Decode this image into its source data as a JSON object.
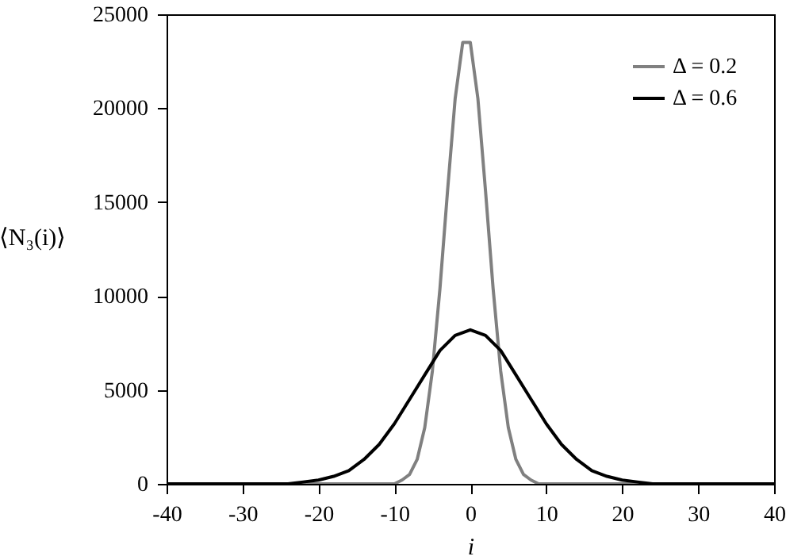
{
  "chart_data": {
    "type": "line",
    "xlabel": "i",
    "ylabel": "⟨N₃(i)⟩",
    "xlim": [
      -40,
      40
    ],
    "xticks": [
      -40,
      -30,
      -20,
      -10,
      0,
      10,
      20,
      30,
      40
    ],
    "ylim": [
      0,
      25000
    ],
    "yticks": [
      0,
      5000,
      10000,
      15000,
      20000,
      25000
    ],
    "legend": "top right",
    "series": [
      {
        "name": "Δ = 0.2",
        "color": "#808080",
        "x": [
          -40,
          -20,
          -11,
          -10,
          -9,
          -8,
          -7,
          -6,
          -5,
          -4,
          -3,
          -2,
          -1,
          0,
          1,
          2,
          3,
          4,
          5,
          6,
          7,
          8,
          9,
          10,
          20,
          40
        ],
        "values": [
          0,
          0,
          0,
          0,
          200,
          500,
          1300,
          3000,
          6000,
          10400,
          15600,
          20500,
          23500,
          23500,
          20500,
          15600,
          10400,
          6000,
          3000,
          1300,
          500,
          200,
          0,
          0,
          0,
          0
        ]
      },
      {
        "name": "Δ = 0.6",
        "color": "#000000",
        "x": [
          -40,
          -28,
          -26,
          -24,
          -22,
          -20,
          -18,
          -16,
          -14,
          -12,
          -10,
          -8,
          -6,
          -4,
          -2,
          0,
          2,
          4,
          6,
          8,
          10,
          12,
          14,
          16,
          18,
          20,
          22,
          24,
          26,
          28,
          40
        ],
        "values": [
          0,
          0,
          0,
          0,
          100,
          200,
          400,
          700,
          1300,
          2100,
          3200,
          4500,
          5800,
          7100,
          7900,
          8200,
          7900,
          7100,
          5800,
          4500,
          3200,
          2100,
          1300,
          700,
          400,
          200,
          100,
          0,
          0,
          0,
          0
        ]
      }
    ]
  }
}
